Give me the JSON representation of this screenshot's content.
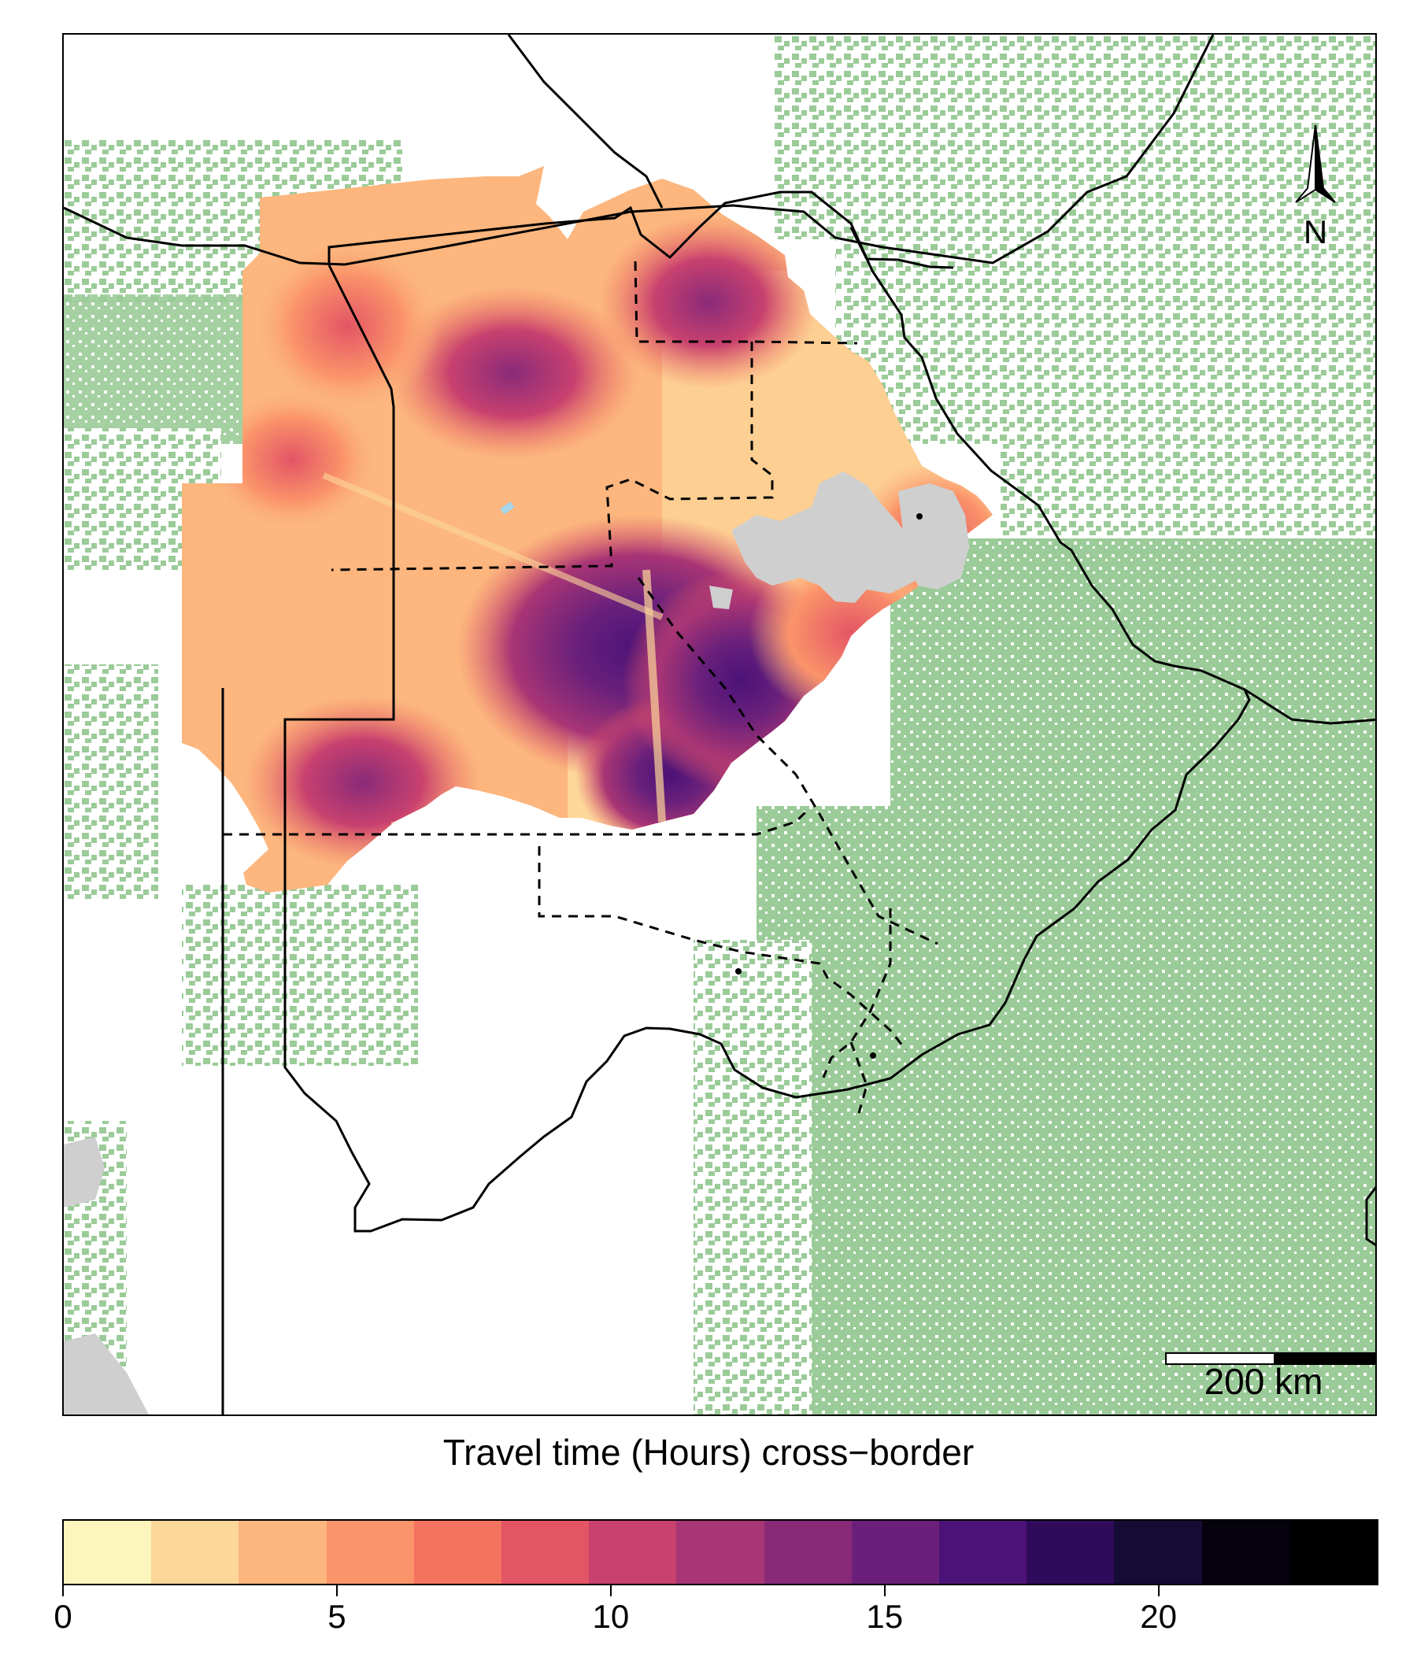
{
  "map": {
    "title": "Travel time (Hours) cross−border",
    "north_label": "N",
    "scale_bar_label": "200 km",
    "colors": {
      "vegetation": "#9bcb98",
      "water": "#cfcfcf",
      "lake": "#a8d7ea",
      "border": "#000000"
    }
  },
  "legend": {
    "min": 0,
    "max": 24,
    "ticks": [
      {
        "value": 0,
        "label": "0"
      },
      {
        "value": 5,
        "label": "5"
      },
      {
        "value": 10,
        "label": "10"
      },
      {
        "value": 15,
        "label": "15"
      },
      {
        "value": 20,
        "label": "20"
      }
    ],
    "colors": [
      "#fcf5bc",
      "#fdd699",
      "#fcb67e",
      "#fb946a",
      "#f3735f",
      "#e35565",
      "#c8416f",
      "#a83575",
      "#892a79",
      "#6a207b",
      "#4b1278",
      "#300a5b",
      "#160b35",
      "#05020e",
      "#000000"
    ]
  }
}
